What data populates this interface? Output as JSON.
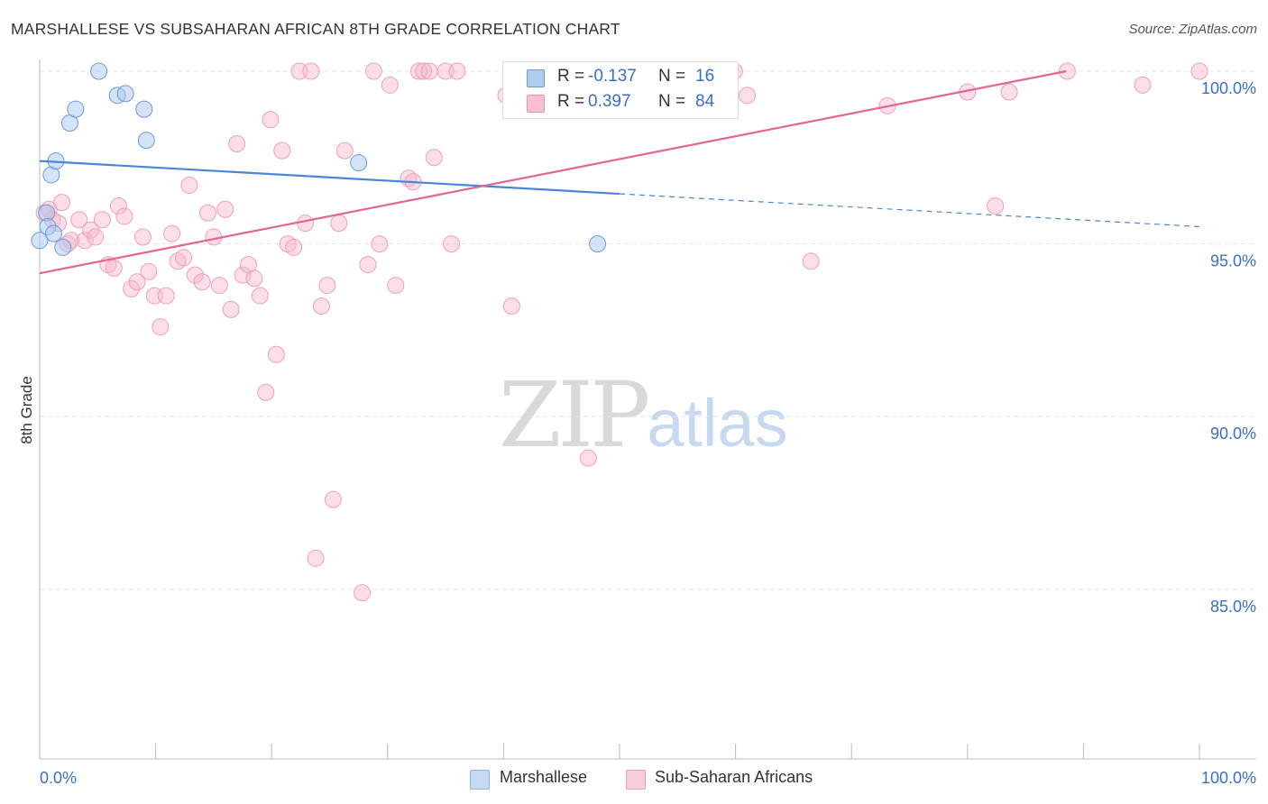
{
  "title": "MARSHALLESE VS SUBSAHARAN AFRICAN 8TH GRADE CORRELATION CHART",
  "source": "Source: ZipAtlas.com",
  "watermark": {
    "zip": "ZIP",
    "atlas": "atlas"
  },
  "legend_box": {
    "rows": [
      {
        "r_label": "R =",
        "r_value": "-0.137",
        "n_label": "N =",
        "n_value": "16",
        "color": "#aecbf0",
        "border": "#6b9bd8"
      },
      {
        "r_label": "R =",
        "r_value": "0.397",
        "n_label": "N =",
        "n_value": "84",
        "color": "#f7bfd1",
        "border": "#e793b0"
      }
    ]
  },
  "bottom_legend": [
    {
      "label": "Marshallese",
      "color": "#c5daf5",
      "border": "#8fb3e3"
    },
    {
      "label": "Sub-Saharan Africans",
      "color": "#f9ccda",
      "border": "#ec9fb9"
    }
  ],
  "chart_data": {
    "type": "scatter",
    "title": "MARSHALLESE VS SUBSAHARAN AFRICAN 8TH GRADE CORRELATION CHART",
    "xlabel": "",
    "ylabel": "8th Grade",
    "xlim": [
      0,
      100
    ],
    "ylim": [
      80.3,
      100.4
    ],
    "x_tick_labels": [
      "0.0%",
      "100.0%"
    ],
    "y_ticks": [
      100,
      95,
      90,
      85
    ],
    "y_tick_labels": [
      "100.0%",
      "95.0%",
      "90.0%",
      "85.0%"
    ],
    "colors": {
      "marshallese": "#4a86d8",
      "subsaharan": "#e26592",
      "axis_text": "#3a6fc4"
    },
    "series": [
      {
        "name": "Marshallese",
        "R": -0.137,
        "N": 16,
        "trend": {
          "x": [
            0,
            50
          ],
          "y": [
            97.4,
            96.45
          ],
          "dashed_to": [
            100,
            95.5
          ]
        },
        "points": [
          {
            "x": 0.0,
            "y": 95.1
          },
          {
            "x": 0.6,
            "y": 95.9
          },
          {
            "x": 0.7,
            "y": 95.5
          },
          {
            "x": 1.0,
            "y": 97.0
          },
          {
            "x": 1.2,
            "y": 95.3
          },
          {
            "x": 1.4,
            "y": 97.4
          },
          {
            "x": 2.0,
            "y": 94.9
          },
          {
            "x": 2.6,
            "y": 98.5
          },
          {
            "x": 3.1,
            "y": 98.9
          },
          {
            "x": 5.1,
            "y": 100.0
          },
          {
            "x": 6.7,
            "y": 99.3
          },
          {
            "x": 7.4,
            "y": 99.35
          },
          {
            "x": 9.0,
            "y": 98.9
          },
          {
            "x": 9.2,
            "y": 98.0
          },
          {
            "x": 27.5,
            "y": 97.35
          },
          {
            "x": 48.1,
            "y": 95.0
          }
        ]
      },
      {
        "name": "Sub-Saharan Africans",
        "R": 0.397,
        "N": 84,
        "trend": {
          "x": [
            0,
            88.5
          ],
          "y": [
            94.15,
            100.0
          ]
        },
        "points": [
          {
            "x": 0.4,
            "y": 95.9
          },
          {
            "x": 0.8,
            "y": 96.0
          },
          {
            "x": 1.1,
            "y": 95.7
          },
          {
            "x": 1.6,
            "y": 95.6
          },
          {
            "x": 1.9,
            "y": 96.2
          },
          {
            "x": 2.4,
            "y": 95.0
          },
          {
            "x": 2.7,
            "y": 95.1
          },
          {
            "x": 3.4,
            "y": 95.7
          },
          {
            "x": 3.9,
            "y": 95.1
          },
          {
            "x": 4.4,
            "y": 95.4
          },
          {
            "x": 4.8,
            "y": 95.2
          },
          {
            "x": 5.4,
            "y": 95.7
          },
          {
            "x": 5.9,
            "y": 94.4
          },
          {
            "x": 6.4,
            "y": 94.3
          },
          {
            "x": 6.8,
            "y": 96.1
          },
          {
            "x": 7.3,
            "y": 95.8
          },
          {
            "x": 7.9,
            "y": 93.7
          },
          {
            "x": 8.4,
            "y": 93.9
          },
          {
            "x": 8.9,
            "y": 95.2
          },
          {
            "x": 9.4,
            "y": 94.2
          },
          {
            "x": 9.9,
            "y": 93.5
          },
          {
            "x": 10.4,
            "y": 92.6
          },
          {
            "x": 10.9,
            "y": 93.5
          },
          {
            "x": 11.4,
            "y": 95.3
          },
          {
            "x": 11.9,
            "y": 94.5
          },
          {
            "x": 12.4,
            "y": 94.6
          },
          {
            "x": 12.9,
            "y": 96.7
          },
          {
            "x": 13.4,
            "y": 94.1
          },
          {
            "x": 14.0,
            "y": 93.9
          },
          {
            "x": 14.5,
            "y": 95.9
          },
          {
            "x": 15.0,
            "y": 95.2
          },
          {
            "x": 15.5,
            "y": 93.8
          },
          {
            "x": 16.0,
            "y": 96.0
          },
          {
            "x": 16.5,
            "y": 93.1
          },
          {
            "x": 17.0,
            "y": 97.9
          },
          {
            "x": 17.5,
            "y": 94.1
          },
          {
            "x": 18.0,
            "y": 94.4
          },
          {
            "x": 18.5,
            "y": 94.0
          },
          {
            "x": 19.0,
            "y": 93.5
          },
          {
            "x": 19.5,
            "y": 90.7
          },
          {
            "x": 19.9,
            "y": 98.6
          },
          {
            "x": 20.4,
            "y": 91.8
          },
          {
            "x": 20.9,
            "y": 97.7
          },
          {
            "x": 21.4,
            "y": 95.0
          },
          {
            "x": 21.9,
            "y": 94.9
          },
          {
            "x": 22.4,
            "y": 100.0
          },
          {
            "x": 22.9,
            "y": 95.6
          },
          {
            "x": 23.4,
            "y": 100.0
          },
          {
            "x": 23.8,
            "y": 85.9
          },
          {
            "x": 24.3,
            "y": 93.2
          },
          {
            "x": 24.8,
            "y": 93.8
          },
          {
            "x": 25.3,
            "y": 87.6
          },
          {
            "x": 25.8,
            "y": 95.6
          },
          {
            "x": 26.3,
            "y": 97.7
          },
          {
            "x": 27.8,
            "y": 84.9
          },
          {
            "x": 28.3,
            "y": 94.4
          },
          {
            "x": 28.8,
            "y": 100.0
          },
          {
            "x": 29.3,
            "y": 95.0
          },
          {
            "x": 30.2,
            "y": 99.6
          },
          {
            "x": 30.7,
            "y": 93.8
          },
          {
            "x": 31.8,
            "y": 96.9
          },
          {
            "x": 32.2,
            "y": 96.8
          },
          {
            "x": 32.7,
            "y": 100.0
          },
          {
            "x": 33.1,
            "y": 100.0
          },
          {
            "x": 33.6,
            "y": 100.0
          },
          {
            "x": 34.0,
            "y": 97.5
          },
          {
            "x": 35.0,
            "y": 100.0
          },
          {
            "x": 35.5,
            "y": 95.0
          },
          {
            "x": 36.0,
            "y": 100.0
          },
          {
            "x": 40.2,
            "y": 99.3
          },
          {
            "x": 40.7,
            "y": 93.2
          },
          {
            "x": 42.2,
            "y": 100.0
          },
          {
            "x": 47.3,
            "y": 88.8
          },
          {
            "x": 56.5,
            "y": 99.1
          },
          {
            "x": 59.9,
            "y": 100.0
          },
          {
            "x": 61.0,
            "y": 99.3
          },
          {
            "x": 66.5,
            "y": 94.5
          },
          {
            "x": 73.1,
            "y": 99.0
          },
          {
            "x": 80.0,
            "y": 99.4
          },
          {
            "x": 82.4,
            "y": 96.1
          },
          {
            "x": 83.6,
            "y": 99.4
          },
          {
            "x": 88.6,
            "y": 100.0
          },
          {
            "x": 95.1,
            "y": 99.6
          },
          {
            "x": 100.0,
            "y": 100.0
          }
        ]
      }
    ]
  }
}
